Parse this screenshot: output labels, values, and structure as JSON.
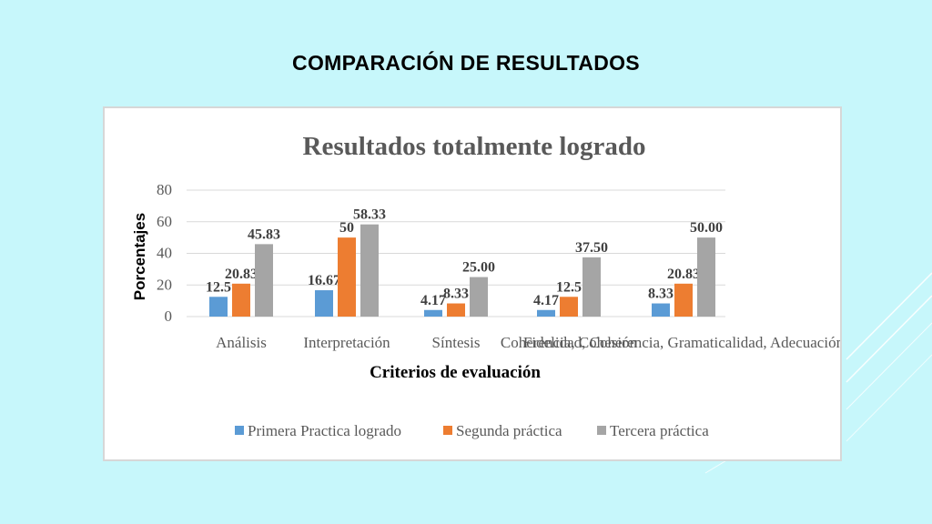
{
  "slide": {
    "title": "COMPARACIÓN DE RESULTADOS"
  },
  "chart_data": {
    "type": "bar",
    "title": "Resultados totalmente logrado",
    "xlabel": "Criterios de evaluación",
    "ylabel": "Porcentajes",
    "ylim": [
      0,
      80
    ],
    "yticks": [
      "0",
      "20",
      "40",
      "60",
      "80"
    ],
    "grid": true,
    "legend_position": "bottom",
    "categories": [
      "Análisis",
      "Interpretación",
      "Síntesis",
      "Coherencia, Cohesión",
      "Fidelidad, Coherencia, Gramaticalidad, Adecuación"
    ],
    "series": [
      {
        "name": "Primera Practica  logrado",
        "color": "#5b9bd5",
        "values": [
          12.5,
          16.67,
          4.17,
          4.17,
          8.33
        ],
        "labels": [
          "12.5",
          "16.67",
          "4.17",
          "4.17",
          "8.33"
        ]
      },
      {
        "name": "Segunda práctica",
        "color": "#ed7d31",
        "values": [
          20.83,
          50,
          8.33,
          12.5,
          20.83
        ],
        "labels": [
          "20.83",
          "50",
          "8.33",
          "12.5",
          "20.83"
        ]
      },
      {
        "name": "Tercera práctica",
        "color": "#a5a5a5",
        "values": [
          45.83,
          58.33,
          25.0,
          37.5,
          50.0
        ],
        "labels": [
          "45.83",
          "58.33",
          "25.00",
          "37.50",
          "50.00"
        ]
      }
    ]
  }
}
